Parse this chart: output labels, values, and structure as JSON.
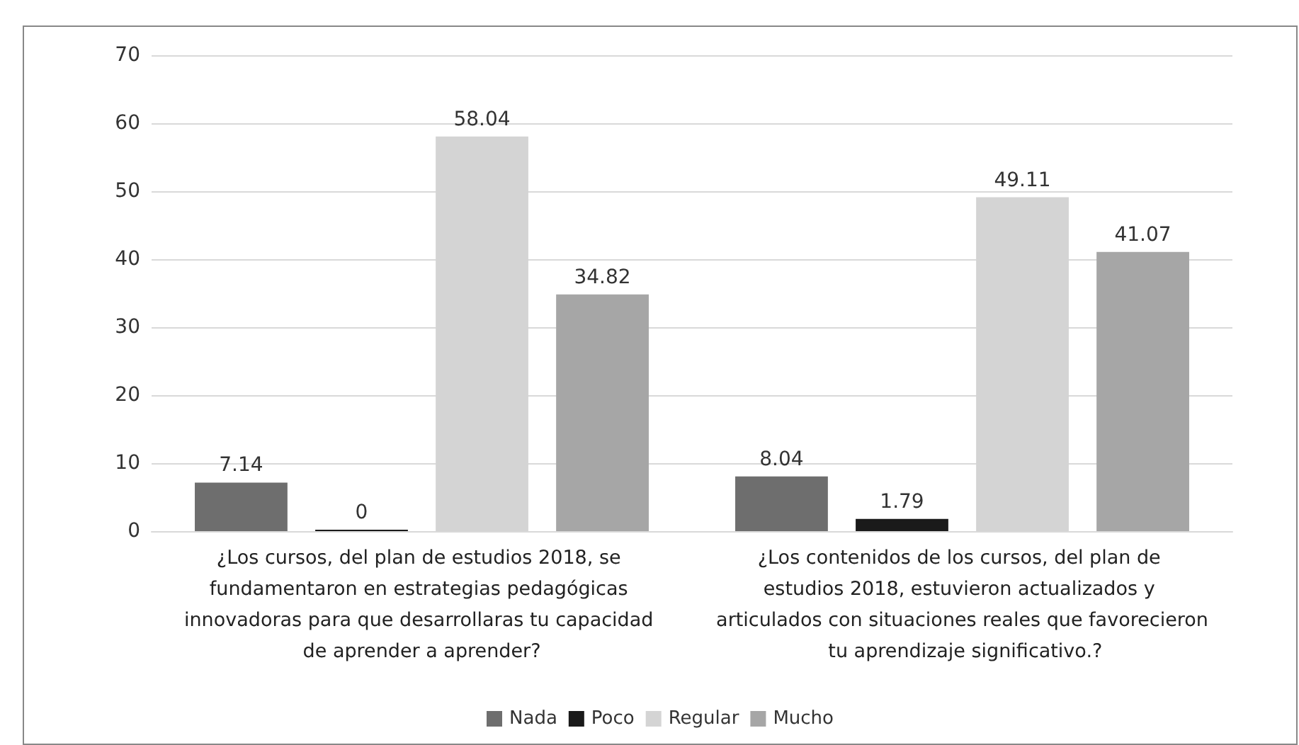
{
  "chart_data": {
    "type": "bar",
    "categories": [
      "¿Los cursos, del plan de estudios 2018, se fundamentaron en estrategias pedagógicas innovadoras para que desarrollaras tu capacidad de aprender a aprender?",
      "¿Los contenidos de los cursos, del plan de estudios 2018, estuvieron actualizados y articulados con situaciones reales que favorecieron tu aprendizaje significativo.?"
    ],
    "series": [
      {
        "name": "Nada",
        "color": "#6e6e6e",
        "values": [
          7.14,
          8.04
        ]
      },
      {
        "name": "Poco",
        "color": "#1a1a1a",
        "values": [
          0,
          1.79
        ]
      },
      {
        "name": "Regular",
        "color": "#d4d4d4",
        "values": [
          58.04,
          49.11
        ]
      },
      {
        "name": "Mucho",
        "color": "#a6a6a6",
        "values": [
          34.82,
          41.07
        ]
      }
    ],
    "ylim": [
      0,
      70
    ],
    "yticks": [
      0,
      10,
      20,
      30,
      40,
      50,
      60,
      70
    ],
    "grid": "y",
    "legend": "bottom",
    "data_labels": true
  }
}
